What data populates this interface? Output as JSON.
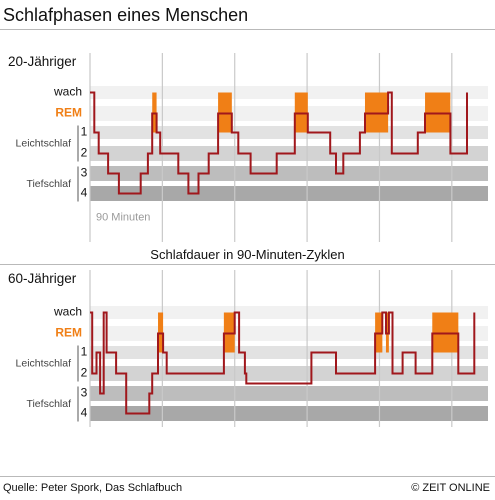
{
  "title": "Schlafphasen eines Menschen",
  "subtitle": "Schlafdauer in 90-Minuten-Zyklen",
  "source": "Quelle: Peter Spork, Das Schlafbuch",
  "credit": "© ZEIT ONLINE",
  "colors": {
    "line": "#a0171c",
    "rem_fill": "#f07f16",
    "rem_label": "#f07f16",
    "band_wach": "#f1f1f1",
    "band_rem": "#f1f1f1",
    "band_1": "#e2e2e2",
    "band_2": "#d3d3d3",
    "band_3": "#bdbdbd",
    "band_4": "#a8a8a8",
    "gridline": "#c9c9c9"
  },
  "labels": {
    "wach": "wach",
    "rem": "REM",
    "leichtschlaf": "Leichtschlaf",
    "tiefschlaf": "Tiefschlaf",
    "stage_1": "1",
    "stage_2": "2",
    "stage_3": "3",
    "stage_4": "4",
    "cycle_note": "90 Minuten"
  },
  "chart_data": [
    {
      "type": "line",
      "title": "20-Jähriger",
      "x_unit": "90-Minuten-Zyklen",
      "xlim": [
        0,
        5.5
      ],
      "grid_x": [
        1,
        2,
        3,
        4,
        5
      ],
      "y_levels": [
        "wach",
        "REM",
        "1",
        "2",
        "3",
        "4"
      ],
      "series": [
        {
          "name": "20-Jähriger",
          "points": [
            [
              0,
              0
            ],
            [
              0.06,
              0
            ],
            [
              0.06,
              2
            ],
            [
              0.12,
              2
            ],
            [
              0.12,
              3
            ],
            [
              0.25,
              3
            ],
            [
              0.25,
              4
            ],
            [
              0.4,
              4
            ],
            [
              0.4,
              5
            ],
            [
              0.7,
              5
            ],
            [
              0.7,
              4
            ],
            [
              0.8,
              4
            ],
            [
              0.8,
              3
            ],
            [
              0.86,
              3
            ],
            [
              0.86,
              1
            ],
            [
              0.92,
              1
            ],
            [
              0.92,
              2
            ],
            [
              0.97,
              2
            ],
            [
              0.97,
              3
            ],
            [
              1.22,
              3
            ],
            [
              1.22,
              4
            ],
            [
              1.36,
              4
            ],
            [
              1.36,
              5
            ],
            [
              1.5,
              5
            ],
            [
              1.5,
              4
            ],
            [
              1.64,
              4
            ],
            [
              1.64,
              3
            ],
            [
              1.77,
              3
            ],
            [
              1.77,
              1
            ],
            [
              1.96,
              1
            ],
            [
              1.96,
              2
            ],
            [
              2.05,
              2
            ],
            [
              2.05,
              3
            ],
            [
              2.22,
              3
            ],
            [
              2.22,
              4
            ],
            [
              2.58,
              4
            ],
            [
              2.58,
              3
            ],
            [
              2.83,
              3
            ],
            [
              2.83,
              1
            ],
            [
              3.01,
              1
            ],
            [
              3.01,
              2
            ],
            [
              3.32,
              2
            ],
            [
              3.32,
              3
            ],
            [
              3.4,
              3
            ],
            [
              3.4,
              4
            ],
            [
              3.5,
              4
            ],
            [
              3.5,
              3
            ],
            [
              3.73,
              3
            ],
            [
              3.73,
              2
            ],
            [
              3.8,
              2
            ],
            [
              3.8,
              1
            ],
            [
              4.12,
              1
            ],
            [
              4.12,
              0
            ],
            [
              4.17,
              0
            ],
            [
              4.17,
              3
            ],
            [
              4.53,
              3
            ],
            [
              4.53,
              2
            ],
            [
              4.63,
              2
            ],
            [
              4.63,
              1
            ],
            [
              4.98,
              1
            ],
            [
              4.98,
              3
            ],
            [
              5.21,
              3
            ],
            [
              5.21,
              0
            ]
          ]
        }
      ],
      "rem_phases": [
        [
          0.86,
          0.92
        ],
        [
          1.77,
          1.96
        ],
        [
          2.83,
          3.01
        ],
        [
          3.8,
          4.12
        ],
        [
          4.63,
          4.98
        ]
      ]
    },
    {
      "type": "line",
      "title": "60-Jähriger",
      "x_unit": "90-Minuten-Zyklen",
      "xlim": [
        0,
        5.5
      ],
      "grid_x": [
        1,
        2,
        3,
        4,
        5
      ],
      "y_levels": [
        "wach",
        "REM",
        "1",
        "2",
        "3",
        "4"
      ],
      "series": [
        {
          "name": "60-Jähriger",
          "points": [
            [
              0,
              0
            ],
            [
              0.03,
              0
            ],
            [
              0.03,
              3
            ],
            [
              0.09,
              3
            ],
            [
              0.09,
              2
            ],
            [
              0.14,
              2
            ],
            [
              0.14,
              4
            ],
            [
              0.19,
              4
            ],
            [
              0.19,
              0
            ],
            [
              0.23,
              0
            ],
            [
              0.23,
              2
            ],
            [
              0.36,
              2
            ],
            [
              0.36,
              3
            ],
            [
              0.5,
              3
            ],
            [
              0.5,
              5
            ],
            [
              0.82,
              5
            ],
            [
              0.82,
              4
            ],
            [
              0.86,
              4
            ],
            [
              0.86,
              3
            ],
            [
              0.94,
              3
            ],
            [
              0.94,
              1
            ],
            [
              1.01,
              1
            ],
            [
              1.01,
              2
            ],
            [
              1.06,
              2
            ],
            [
              1.06,
              3
            ],
            [
              1.85,
              3
            ],
            [
              1.85,
              1
            ],
            [
              2.0,
              1
            ],
            [
              2.0,
              0
            ],
            [
              2.06,
              0
            ],
            [
              2.06,
              2
            ],
            [
              2.14,
              2
            ],
            [
              2.14,
              3
            ],
            [
              2.16,
              3
            ],
            [
              2.16,
              3.5
            ],
            [
              3.06,
              3.5
            ],
            [
              3.06,
              2
            ],
            [
              3.4,
              2
            ],
            [
              3.4,
              3
            ],
            [
              3.94,
              3
            ],
            [
              3.94,
              1
            ],
            [
              4.04,
              1
            ],
            [
              4.04,
              0
            ],
            [
              4.09,
              0
            ],
            [
              4.09,
              1
            ],
            [
              4.13,
              1
            ],
            [
              4.13,
              0
            ],
            [
              4.18,
              0
            ],
            [
              4.18,
              3
            ],
            [
              4.32,
              3
            ],
            [
              4.32,
              2
            ],
            [
              4.5,
              2
            ],
            [
              4.5,
              3
            ],
            [
              4.73,
              3
            ],
            [
              4.73,
              1
            ],
            [
              5.09,
              1
            ],
            [
              5.09,
              3
            ],
            [
              5.31,
              3
            ],
            [
              5.31,
              0
            ]
          ]
        }
      ],
      "rem_phases": [
        [
          0.94,
          1.01
        ],
        [
          1.85,
          2.0
        ],
        [
          3.94,
          4.04
        ],
        [
          4.09,
          4.13
        ],
        [
          4.73,
          5.09
        ]
      ]
    }
  ]
}
